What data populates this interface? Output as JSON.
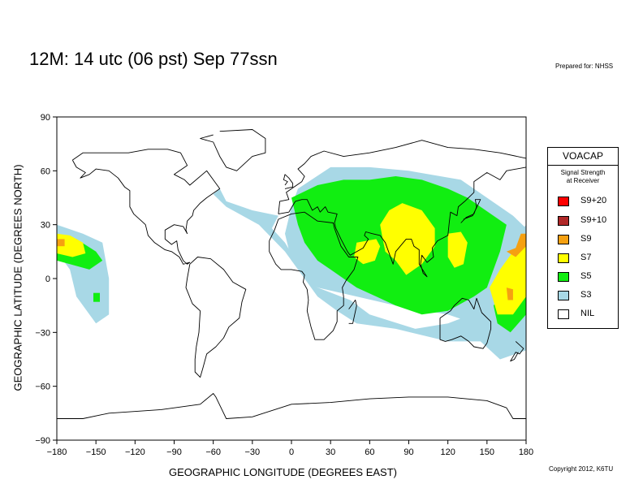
{
  "title": "12M:  14 utc (06 pst) Sep 77ssn",
  "prepared_for": "Prepared for: NHSS",
  "copyright": "Copyright 2012, K6TU",
  "xlabel": "GEOGRAPHIC LONGITUDE (DEGREES EAST)",
  "ylabel": "GEOGRAPHIC LATITUDE (DEGREES NORTH)",
  "x_ticks": [
    "−180",
    "−150",
    "−120",
    "−90",
    "−60",
    "−30",
    "0",
    "30",
    "60",
    "90",
    "120",
    "150",
    "180"
  ],
  "y_ticks": [
    "90",
    "60",
    "30",
    "0",
    "−30",
    "−60",
    "−90"
  ],
  "legend": {
    "title": "VOACAP",
    "subtitle_line1": "Signal Strength",
    "subtitle_line2": "at Receiver",
    "items": [
      {
        "label": "S9+20",
        "color": "#ff0000"
      },
      {
        "label": "S9+10",
        "color": "#b02828"
      },
      {
        "label": "S9",
        "color": "#f5a011"
      },
      {
        "label": "S7",
        "color": "#ffff00"
      },
      {
        "label": "S5",
        "color": "#11ee11"
      },
      {
        "label": "S3",
        "color": "#a8d8e6"
      },
      {
        "label": "NIL",
        "color": "#ffffff"
      }
    ]
  },
  "chart_data": {
    "type": "heatmap",
    "title": "12M:  14 utc (06 pst) Sep 77ssn",
    "xlabel": "GEOGRAPHIC LONGITUDE (DEGREES EAST)",
    "ylabel": "GEOGRAPHIC LATITUDE (DEGREES NORTH)",
    "xlim": [
      -180,
      180
    ],
    "ylim": [
      -90,
      90
    ],
    "grid": false,
    "legend_placement": "right",
    "regions": [
      {
        "level": "S3",
        "points": [
          [
            -55,
            50
          ],
          [
            -50,
            43
          ],
          [
            -30,
            38
          ],
          [
            -10,
            35
          ],
          [
            -15,
            28
          ],
          [
            -5,
            20
          ],
          [
            5,
            8
          ],
          [
            20,
            -5
          ],
          [
            45,
            -12
          ],
          [
            60,
            -20
          ],
          [
            95,
            -28
          ],
          [
            120,
            -25
          ],
          [
            138,
            -20
          ],
          [
            150,
            5
          ],
          [
            165,
            20
          ],
          [
            175,
            25
          ],
          [
            180,
            30
          ],
          [
            180,
            -40
          ],
          [
            160,
            -45
          ],
          [
            145,
            -35
          ],
          [
            120,
            -35
          ],
          [
            80,
            -28
          ],
          [
            50,
            -25
          ],
          [
            35,
            -18
          ],
          [
            20,
            -10
          ],
          [
            -5,
            15
          ],
          [
            -25,
            30
          ],
          [
            -50,
            40
          ],
          [
            -60,
            47
          ]
        ]
      },
      {
        "level": "S3",
        "points": [
          [
            5,
            50
          ],
          [
            30,
            62
          ],
          [
            60,
            62
          ],
          [
            90,
            60
          ],
          [
            130,
            55
          ],
          [
            150,
            45
          ],
          [
            170,
            35
          ],
          [
            180,
            28
          ],
          [
            180,
            -20
          ],
          [
            160,
            -30
          ],
          [
            140,
            -25
          ],
          [
            120,
            -20
          ],
          [
            80,
            -15
          ],
          [
            50,
            -10
          ],
          [
            20,
            -5
          ],
          [
            0,
            10
          ],
          [
            -5,
            25
          ],
          [
            0,
            40
          ]
        ]
      },
      {
        "level": "S3",
        "points": [
          [
            -180,
            30
          ],
          [
            -160,
            25
          ],
          [
            -145,
            20
          ],
          [
            -140,
            0
          ],
          [
            -140,
            -20
          ],
          [
            -150,
            -25
          ],
          [
            -165,
            -10
          ],
          [
            -170,
            5
          ],
          [
            -180,
            15
          ]
        ]
      },
      {
        "level": "S5",
        "points": [
          [
            0,
            45
          ],
          [
            20,
            52
          ],
          [
            40,
            55
          ],
          [
            60,
            55
          ],
          [
            80,
            57
          ],
          [
            100,
            55
          ],
          [
            120,
            50
          ],
          [
            135,
            45
          ],
          [
            145,
            40
          ],
          [
            165,
            30
          ],
          [
            160,
            15
          ],
          [
            150,
            -5
          ],
          [
            140,
            -10
          ],
          [
            120,
            -18
          ],
          [
            100,
            -20
          ],
          [
            80,
            -15
          ],
          [
            65,
            -10
          ],
          [
            50,
            -5
          ],
          [
            40,
            0
          ],
          [
            30,
            5
          ],
          [
            20,
            10
          ],
          [
            10,
            20
          ],
          [
            5,
            30
          ]
        ]
      },
      {
        "level": "S5",
        "points": [
          [
            155,
            -15
          ],
          [
            165,
            -5
          ],
          [
            175,
            15
          ],
          [
            180,
            25
          ],
          [
            180,
            -20
          ],
          [
            168,
            -30
          ],
          [
            158,
            -25
          ]
        ]
      },
      {
        "level": "S5",
        "points": [
          [
            -180,
            25
          ],
          [
            -165,
            22
          ],
          [
            -150,
            15
          ],
          [
            -145,
            10
          ],
          [
            -155,
            5
          ],
          [
            -170,
            8
          ],
          [
            -180,
            10
          ]
        ]
      },
      {
        "level": "S5",
        "points": [
          [
            -152,
            -8
          ],
          [
            -147,
            -8
          ],
          [
            -147,
            -13
          ],
          [
            -152,
            -13
          ]
        ]
      },
      {
        "level": "S7",
        "points": [
          [
            75,
            38
          ],
          [
            85,
            42
          ],
          [
            100,
            38
          ],
          [
            110,
            28
          ],
          [
            110,
            18
          ],
          [
            100,
            8
          ],
          [
            88,
            2
          ],
          [
            80,
            10
          ],
          [
            72,
            15
          ],
          [
            70,
            22
          ],
          [
            68,
            30
          ]
        ]
      },
      {
        "level": "S7",
        "points": [
          [
            50,
            20
          ],
          [
            65,
            22
          ],
          [
            68,
            18
          ],
          [
            64,
            10
          ],
          [
            55,
            8
          ],
          [
            48,
            12
          ]
        ]
      },
      {
        "level": "S7",
        "points": [
          [
            120,
            25
          ],
          [
            130,
            26
          ],
          [
            135,
            20
          ],
          [
            132,
            8
          ],
          [
            125,
            6
          ],
          [
            120,
            12
          ]
        ]
      },
      {
        "level": "S7",
        "points": [
          [
            152,
            -5
          ],
          [
            160,
            5
          ],
          [
            170,
            15
          ],
          [
            180,
            25
          ],
          [
            180,
            -10
          ],
          [
            170,
            -20
          ],
          [
            158,
            -20
          ]
        ]
      },
      {
        "level": "S7",
        "points": [
          [
            -180,
            25
          ],
          [
            -170,
            24
          ],
          [
            -160,
            20
          ],
          [
            -158,
            14
          ],
          [
            -168,
            12
          ],
          [
            -180,
            14
          ]
        ]
      },
      {
        "level": "S9",
        "points": [
          [
            165,
            15
          ],
          [
            172,
            17
          ],
          [
            176,
            25
          ],
          [
            180,
            25
          ],
          [
            180,
            18
          ],
          [
            172,
            12
          ]
        ]
      },
      {
        "level": "S9",
        "points": [
          [
            165,
            -5
          ],
          [
            170,
            -6
          ],
          [
            170,
            -12
          ],
          [
            166,
            -12
          ]
        ]
      },
      {
        "level": "S9",
        "points": [
          [
            -180,
            22
          ],
          [
            -174,
            22
          ],
          [
            -174,
            18
          ],
          [
            -180,
            18
          ]
        ]
      }
    ]
  }
}
